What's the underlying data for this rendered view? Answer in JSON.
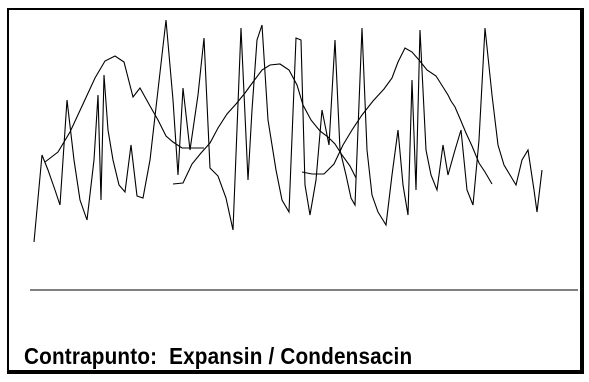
{
  "caption": "Contrapunto:  Expansin / Condensacin",
  "colors": {
    "line": "#000000",
    "background": "#ffffff"
  },
  "series": {
    "zigzag": [
      [
        34,
        242
      ],
      [
        42,
        155
      ],
      [
        48,
        170
      ],
      [
        55,
        190
      ],
      [
        60,
        205
      ],
      [
        67,
        100
      ],
      [
        74,
        160
      ],
      [
        80,
        200
      ],
      [
        87,
        220
      ],
      [
        94,
        160
      ],
      [
        98,
        95
      ],
      [
        101,
        200
      ],
      [
        104,
        75
      ],
      [
        108,
        130
      ],
      [
        113,
        160
      ],
      [
        119,
        185
      ],
      [
        125,
        192
      ],
      [
        131,
        145
      ],
      [
        137,
        196
      ],
      [
        143,
        198
      ],
      [
        150,
        160
      ],
      [
        158,
        90
      ],
      [
        166,
        20
      ],
      [
        173,
        100
      ],
      [
        178,
        175
      ],
      [
        183,
        88
      ],
      [
        190,
        150
      ],
      [
        198,
        95
      ],
      [
        204,
        38
      ],
      [
        210,
        168
      ],
      [
        218,
        176
      ],
      [
        226,
        198
      ],
      [
        233,
        230
      ],
      [
        241,
        28
      ],
      [
        248,
        180
      ],
      [
        252,
        110
      ],
      [
        257,
        40
      ],
      [
        262,
        25
      ],
      [
        268,
        120
      ],
      [
        276,
        170
      ],
      [
        282,
        200
      ],
      [
        289,
        212
      ],
      [
        296,
        38
      ],
      [
        301,
        40
      ],
      [
        305,
        185
      ],
      [
        310,
        215
      ],
      [
        316,
        180
      ],
      [
        322,
        110
      ],
      [
        329,
        145
      ],
      [
        335,
        40
      ],
      [
        340,
        150
      ],
      [
        346,
        175
      ],
      [
        351,
        198
      ],
      [
        355,
        205
      ],
      [
        362,
        28
      ],
      [
        367,
        150
      ],
      [
        372,
        195
      ],
      [
        378,
        212
      ],
      [
        386,
        225
      ],
      [
        392,
        175
      ],
      [
        398,
        130
      ],
      [
        403,
        185
      ],
      [
        408,
        215
      ],
      [
        412,
        80
      ],
      [
        416,
        190
      ],
      [
        420,
        30
      ],
      [
        426,
        150
      ],
      [
        431,
        175
      ],
      [
        437,
        190
      ],
      [
        443,
        145
      ],
      [
        448,
        175
      ],
      [
        455,
        150
      ],
      [
        461,
        130
      ],
      [
        467,
        190
      ],
      [
        473,
        205
      ],
      [
        479,
        140
      ],
      [
        485,
        28
      ],
      [
        492,
        95
      ],
      [
        498,
        145
      ],
      [
        504,
        165
      ],
      [
        510,
        175
      ],
      [
        516,
        185
      ],
      [
        522,
        160
      ],
      [
        528,
        150
      ],
      [
        534,
        190
      ],
      [
        537,
        212
      ],
      [
        542,
        170
      ]
    ],
    "curve_left": [
      [
        45,
        162
      ],
      [
        58,
        152
      ],
      [
        70,
        132
      ],
      [
        83,
        104
      ],
      [
        95,
        78
      ],
      [
        105,
        61
      ],
      [
        115,
        56
      ],
      [
        124,
        62
      ],
      [
        133,
        97
      ],
      [
        140,
        88
      ],
      [
        150,
        106
      ],
      [
        158,
        120
      ],
      [
        166,
        136
      ],
      [
        173,
        142
      ],
      [
        182,
        148
      ],
      [
        192,
        148
      ],
      [
        204,
        148
      ]
    ],
    "curve_mid": [
      [
        173,
        184
      ],
      [
        183,
        183
      ],
      [
        192,
        164
      ],
      [
        201,
        153
      ],
      [
        210,
        143
      ],
      [
        218,
        128
      ],
      [
        227,
        114
      ],
      [
        236,
        104
      ],
      [
        245,
        93
      ],
      [
        253,
        82
      ],
      [
        262,
        70
      ],
      [
        270,
        65
      ],
      [
        280,
        64
      ],
      [
        289,
        70
      ],
      [
        297,
        85
      ],
      [
        303,
        105
      ],
      [
        311,
        120
      ],
      [
        320,
        131
      ],
      [
        328,
        137
      ],
      [
        335,
        144
      ],
      [
        342,
        155
      ],
      [
        350,
        166
      ],
      [
        356,
        178
      ]
    ],
    "curve_right": [
      [
        302,
        172
      ],
      [
        312,
        174
      ],
      [
        324,
        174
      ],
      [
        334,
        164
      ],
      [
        343,
        145
      ],
      [
        352,
        130
      ],
      [
        362,
        115
      ],
      [
        373,
        101
      ],
      [
        384,
        89
      ],
      [
        392,
        78
      ],
      [
        398,
        62
      ],
      [
        405,
        48
      ],
      [
        412,
        52
      ],
      [
        419,
        60
      ],
      [
        427,
        70
      ],
      [
        436,
        76
      ],
      [
        443,
        87
      ],
      [
        448,
        95
      ],
      [
        451,
        101
      ],
      [
        455,
        107
      ],
      [
        461,
        121
      ],
      [
        466,
        133
      ],
      [
        472,
        146
      ],
      [
        479,
        163
      ],
      [
        485,
        172
      ],
      [
        492,
        184
      ]
    ],
    "baseline": [
      [
        30,
        290
      ],
      [
        578,
        290
      ]
    ]
  }
}
